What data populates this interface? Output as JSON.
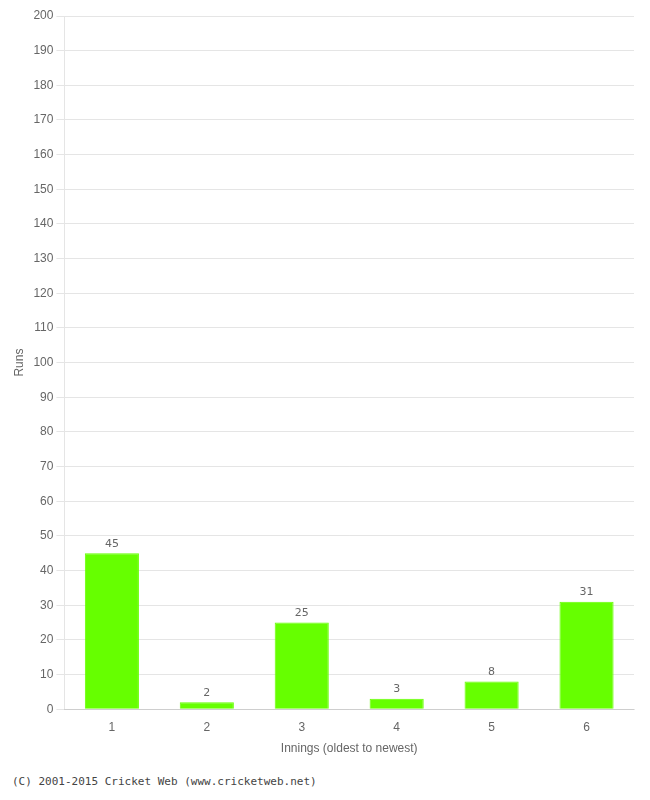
{
  "chart_data": {
    "type": "bar",
    "xlabel": "Innings (oldest to newest)",
    "ylabel": "Runs",
    "categories": [
      "1",
      "2",
      "3",
      "4",
      "5",
      "6"
    ],
    "values": [
      45,
      2,
      25,
      3,
      8,
      31
    ],
    "color": "#66ff00",
    "ylim": [
      0,
      200
    ],
    "yticks": [
      0,
      10,
      20,
      30,
      40,
      50,
      60,
      70,
      80,
      90,
      100,
      110,
      120,
      130,
      140,
      150,
      160,
      170,
      180,
      190,
      200
    ],
    "grid": true,
    "data_labels": true,
    "annotations": [
      "(C) 2001-2015 Cricket Web (www.cricketweb.net)"
    ]
  }
}
